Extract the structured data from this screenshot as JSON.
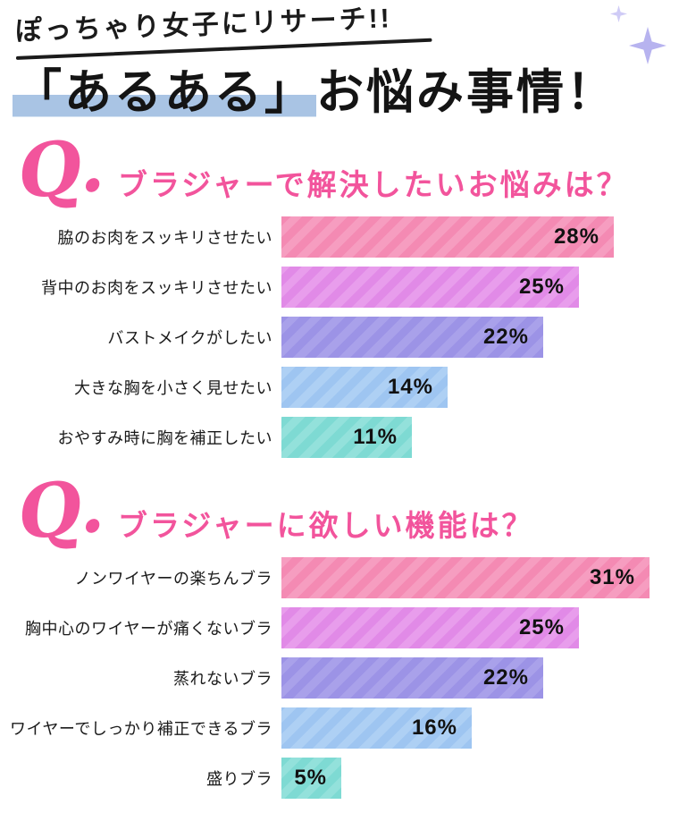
{
  "header": {
    "tagline": "ぽっちゃり女子にリサーチ!!",
    "title_highlight": "「あるある」",
    "title_rest": "お悩み事情！",
    "title_highlight_color": "#a9c4e4",
    "sparkle_color": "#b7b3ef",
    "accent_pink": "#f2549c"
  },
  "chart_data": [
    {
      "type": "bar",
      "orientation": "horizontal",
      "q_label": "Q.",
      "title": "ブラジャーで解決したいお悩みは？",
      "unit": "%",
      "categories": [
        "脇のお肉をスッキリさせたい",
        "背中のお肉をスッキリさせたい",
        "バストメイクがしたい",
        "大きな胸を小さく見せたい",
        "おやすみ時に胸を補正したい"
      ],
      "values": [
        28,
        25,
        22,
        14,
        11
      ],
      "value_labels": [
        "28%",
        "25%",
        "22%",
        "14%",
        "11%"
      ],
      "bar_colors": [
        "#f48ab3",
        "#e18ae7",
        "#9c93e6",
        "#9ec5f1",
        "#7edad3"
      ],
      "bar_stripe_colors": [
        "#f69dc0",
        "#e89dec",
        "#a9a1ea",
        "#aed0f4",
        "#93e1db"
      ],
      "xlim": [
        0,
        31
      ],
      "grid": false,
      "legend": false
    },
    {
      "type": "bar",
      "orientation": "horizontal",
      "q_label": "Q.",
      "title": "ブラジャーに欲しい機能は？",
      "unit": "%",
      "categories": [
        "ノンワイヤーの楽ちんブラ",
        "胸中心のワイヤーが痛くないブラ",
        "蒸れないブラ",
        "ワイヤーでしっかり補正できるブラ",
        "盛りブラ"
      ],
      "values": [
        31,
        25,
        22,
        16,
        5
      ],
      "value_labels": [
        "31%",
        "25%",
        "22%",
        "16%",
        "5%"
      ],
      "bar_colors": [
        "#f48ab3",
        "#e18ae7",
        "#9c93e6",
        "#9ec5f1",
        "#7edad3"
      ],
      "bar_stripe_colors": [
        "#f69dc0",
        "#e89dec",
        "#a9a1ea",
        "#aed0f4",
        "#93e1db"
      ],
      "xlim": [
        0,
        31
      ],
      "grid": false,
      "legend": false
    }
  ]
}
